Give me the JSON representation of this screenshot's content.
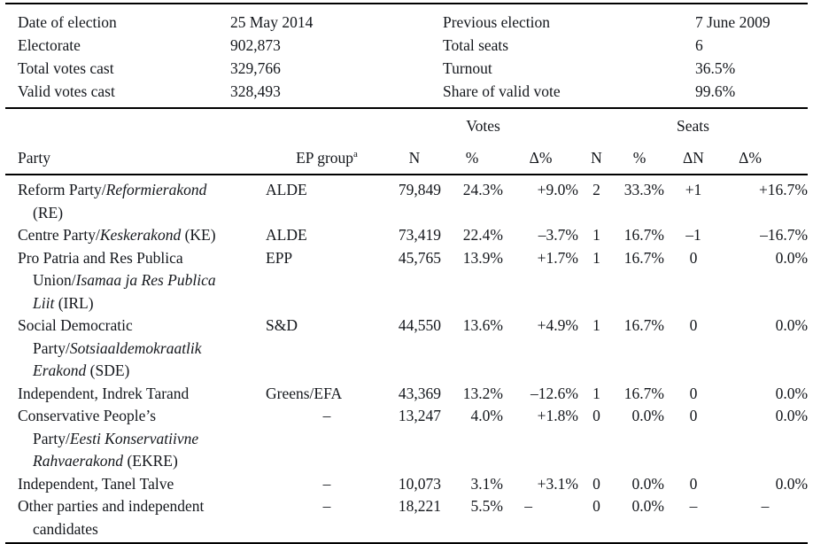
{
  "meta": {
    "rows": [
      {
        "l1": "Date of election",
        "v1": "25 May 2014",
        "l2": "Previous election",
        "v2": "7 June 2009"
      },
      {
        "l1": "Electorate",
        "v1": "902,873",
        "l2": "Total seats",
        "v2": "6"
      },
      {
        "l1": "Total votes cast",
        "v1": "329,766",
        "l2": "Turnout",
        "v2": "36.5%"
      },
      {
        "l1": "Valid votes cast",
        "v1": "328,493",
        "l2": "Share of valid vote",
        "v2": "99.6%"
      }
    ]
  },
  "header": {
    "party": "Party",
    "ep_group": "EP group",
    "ep_group_note": "a",
    "votes_group": "Votes",
    "seats_group": "Seats",
    "n": "N",
    "pct": "%",
    "delta_pct": "Δ%",
    "delta_n": "ΔN"
  },
  "rows": [
    {
      "segs": [
        {
          "t": "Reform Party/"
        },
        {
          "t": "Reformierakond",
          "it": true
        },
        {
          "t": "\n(RE)"
        }
      ],
      "ep": "ALDE",
      "v_n": "79,849",
      "v_pct": "24.3%",
      "v_dpct": "+9.0%",
      "s_n": "2",
      "s_pct": "33.3%",
      "s_dn": "+1",
      "s_dpct": "+16.7%"
    },
    {
      "segs": [
        {
          "t": "Centre Party/"
        },
        {
          "t": "Keskerakond",
          "it": true
        },
        {
          "t": " (KE)"
        }
      ],
      "ep": "ALDE",
      "v_n": "73,419",
      "v_pct": "22.4%",
      "v_dpct": "–3.7%",
      "s_n": "1",
      "s_pct": "16.7%",
      "s_dn": "–1",
      "s_dpct": "–16.7%"
    },
    {
      "segs": [
        {
          "t": "Pro Patria and Res Publica\nUnion/"
        },
        {
          "t": "Isamaa ja Res Publica\nLiit",
          "it": true
        },
        {
          "t": " (IRL)"
        }
      ],
      "ep": "EPP",
      "v_n": "45,765",
      "v_pct": "13.9%",
      "v_dpct": "+1.7%",
      "s_n": "1",
      "s_pct": "16.7%",
      "s_dn": "0",
      "s_dpct": "0.0%"
    },
    {
      "segs": [
        {
          "t": "Social Democratic\nParty/"
        },
        {
          "t": "Sotsiaaldemokraatlik\nErakond",
          "it": true
        },
        {
          "t": " (SDE)"
        }
      ],
      "ep": "S&D",
      "v_n": "44,550",
      "v_pct": "13.6%",
      "v_dpct": "+4.9%",
      "s_n": "1",
      "s_pct": "16.7%",
      "s_dn": "0",
      "s_dpct": "0.0%"
    },
    {
      "segs": [
        {
          "t": "Independent, Indrek Tarand"
        }
      ],
      "ep": "Greens/EFA",
      "v_n": "43,369",
      "v_pct": "13.2%",
      "v_dpct": "–12.6%",
      "s_n": "1",
      "s_pct": "16.7%",
      "s_dn": "0",
      "s_dpct": "0.0%"
    },
    {
      "segs": [
        {
          "t": "Conservative People’s\nParty/"
        },
        {
          "t": "Eesti Konservatiivne\nRahvaerakond",
          "it": true
        },
        {
          "t": " (EKRE)"
        }
      ],
      "ep": "–",
      "v_n": "13,247",
      "v_pct": "4.0%",
      "v_dpct": "+1.8%",
      "s_n": "0",
      "s_pct": "0.0%",
      "s_dn": "0",
      "s_dpct": "0.0%"
    },
    {
      "segs": [
        {
          "t": "Independent, Tanel Talve"
        }
      ],
      "ep": "–",
      "v_n": "10,073",
      "v_pct": "3.1%",
      "v_dpct": "+3.1%",
      "s_n": "0",
      "s_pct": "0.0%",
      "s_dn": "0",
      "s_dpct": "0.0%"
    },
    {
      "segs": [
        {
          "t": "Other parties and independent\ncandidates"
        }
      ],
      "ep": "–",
      "v_n": "18,221",
      "v_pct": "5.5%",
      "v_dpct": "–",
      "s_n": "0",
      "s_pct": "0.0%",
      "s_dn": "–",
      "s_dpct": "–"
    }
  ]
}
